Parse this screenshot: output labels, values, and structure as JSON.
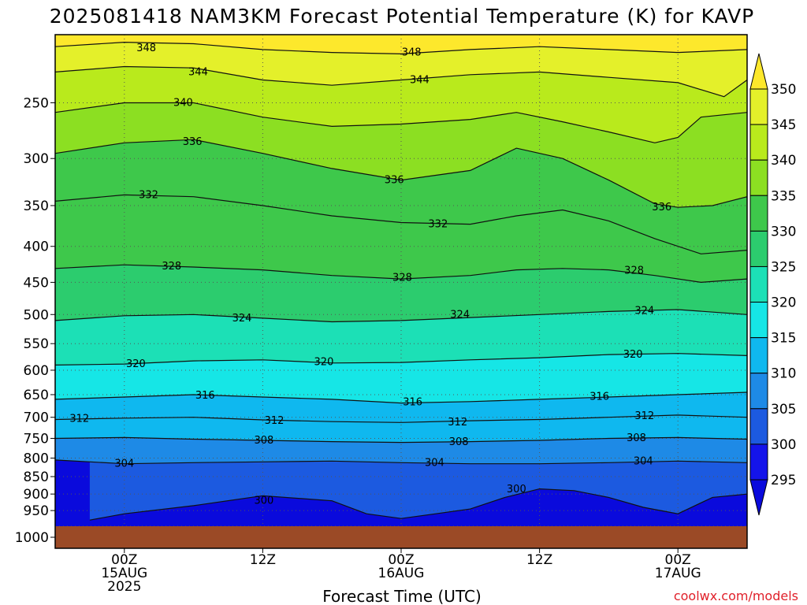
{
  "title": "2025081418 NAM3KM Forecast Potential Temperature (K) for KAVP",
  "xlabel": "Forecast Time (UTC)",
  "credit": "coolwx.com/models",
  "chart_data": {
    "type": "heatmap",
    "title": "2025081418 NAM3KM Forecast Potential Temperature (K) for KAVP",
    "xlabel": "Forecast Time (UTC)",
    "ylabel": "",
    "y_scale": "log",
    "y_reversed": true,
    "ylim": [
      1000,
      200
    ],
    "y_ticks": [
      250,
      300,
      350,
      400,
      450,
      500,
      550,
      600,
      650,
      700,
      750,
      800,
      850,
      900,
      950,
      1000
    ],
    "x_ticks": [
      {
        "hours": 6,
        "label": [
          "00Z",
          "15AUG",
          "2025"
        ]
      },
      {
        "hours": 18,
        "label": [
          "12Z"
        ]
      },
      {
        "hours": 30,
        "label": [
          "00Z",
          "16AUG"
        ]
      },
      {
        "hours": 42,
        "label": [
          "12Z"
        ]
      },
      {
        "hours": 54,
        "label": [
          "00Z",
          "17AUG"
        ]
      }
    ],
    "xlim": [
      0,
      60
    ],
    "colorbar": {
      "levels": [
        350,
        345,
        340,
        335,
        330,
        325,
        320,
        315,
        310,
        305,
        300,
        295
      ],
      "colors": [
        "#fde82c",
        "#e4f02a",
        "#b9ea1c",
        "#8cdf22",
        "#3ec84b",
        "#2ccc6e",
        "#1ce0b6",
        "#16e6e6",
        "#0fb8ef",
        "#1e8ae6",
        "#1c5ae0",
        "#1414ea",
        "#0a0adc"
      ]
    },
    "series": [
      {
        "value": 348,
        "points": [
          [
            0,
            208
          ],
          [
            6,
            205
          ],
          [
            12,
            206
          ],
          [
            18,
            210
          ],
          [
            24,
            212
          ],
          [
            30,
            213
          ],
          [
            36,
            210
          ],
          [
            42,
            208
          ],
          [
            48,
            210
          ],
          [
            54,
            212
          ],
          [
            60,
            210
          ]
        ]
      },
      {
        "value": 344,
        "points": [
          [
            0,
            226
          ],
          [
            6,
            222
          ],
          [
            12,
            223
          ],
          [
            18,
            232
          ],
          [
            24,
            236
          ],
          [
            30,
            232
          ],
          [
            36,
            228
          ],
          [
            42,
            226
          ],
          [
            48,
            230
          ],
          [
            54,
            234
          ],
          [
            58,
            245
          ],
          [
            60,
            232
          ]
        ]
      },
      {
        "value": 340,
        "points": [
          [
            0,
            258
          ],
          [
            6,
            250
          ],
          [
            12,
            250
          ],
          [
            18,
            262
          ],
          [
            24,
            270
          ],
          [
            30,
            268
          ],
          [
            36,
            264
          ],
          [
            40,
            258
          ],
          [
            44,
            266
          ],
          [
            48,
            275
          ],
          [
            52,
            285
          ],
          [
            54,
            280
          ],
          [
            56,
            262
          ],
          [
            60,
            258
          ]
        ]
      },
      {
        "value": 336,
        "points": [
          [
            0,
            295
          ],
          [
            6,
            285
          ],
          [
            12,
            282
          ],
          [
            18,
            295
          ],
          [
            24,
            310
          ],
          [
            30,
            322
          ],
          [
            36,
            312
          ],
          [
            40,
            290
          ],
          [
            44,
            300
          ],
          [
            48,
            322
          ],
          [
            52,
            348
          ],
          [
            54,
            352
          ],
          [
            57,
            350
          ],
          [
            60,
            340
          ]
        ]
      },
      {
        "value": 332,
        "points": [
          [
            0,
            345
          ],
          [
            6,
            338
          ],
          [
            12,
            340
          ],
          [
            18,
            350
          ],
          [
            24,
            362
          ],
          [
            30,
            370
          ],
          [
            36,
            372
          ],
          [
            40,
            362
          ],
          [
            44,
            355
          ],
          [
            48,
            368
          ],
          [
            52,
            390
          ],
          [
            56,
            410
          ],
          [
            60,
            405
          ]
        ]
      },
      {
        "value": 328,
        "points": [
          [
            0,
            430
          ],
          [
            6,
            425
          ],
          [
            12,
            428
          ],
          [
            18,
            432
          ],
          [
            24,
            440
          ],
          [
            30,
            445
          ],
          [
            36,
            440
          ],
          [
            40,
            432
          ],
          [
            44,
            430
          ],
          [
            48,
            432
          ],
          [
            52,
            440
          ],
          [
            56,
            450
          ],
          [
            60,
            445
          ]
        ]
      },
      {
        "value": 324,
        "points": [
          [
            0,
            510
          ],
          [
            6,
            502
          ],
          [
            12,
            500
          ],
          [
            18,
            506
          ],
          [
            24,
            512
          ],
          [
            30,
            510
          ],
          [
            36,
            505
          ],
          [
            42,
            500
          ],
          [
            48,
            495
          ],
          [
            54,
            492
          ],
          [
            60,
            500
          ]
        ]
      },
      {
        "value": 320,
        "points": [
          [
            0,
            590
          ],
          [
            6,
            588
          ],
          [
            12,
            582
          ],
          [
            18,
            580
          ],
          [
            24,
            586
          ],
          [
            30,
            585
          ],
          [
            36,
            580
          ],
          [
            42,
            576
          ],
          [
            48,
            570
          ],
          [
            54,
            568
          ],
          [
            60,
            572
          ]
        ]
      },
      {
        "value": 316,
        "points": [
          [
            0,
            660
          ],
          [
            6,
            655
          ],
          [
            12,
            650
          ],
          [
            18,
            655
          ],
          [
            24,
            660
          ],
          [
            30,
            668
          ],
          [
            36,
            665
          ],
          [
            42,
            660
          ],
          [
            48,
            655
          ],
          [
            54,
            650
          ],
          [
            60,
            645
          ]
        ]
      },
      {
        "value": 312,
        "points": [
          [
            0,
            705
          ],
          [
            6,
            702
          ],
          [
            12,
            700
          ],
          [
            18,
            706
          ],
          [
            24,
            710
          ],
          [
            30,
            712
          ],
          [
            36,
            708
          ],
          [
            42,
            705
          ],
          [
            48,
            700
          ],
          [
            54,
            695
          ],
          [
            60,
            700
          ]
        ]
      },
      {
        "value": 308,
        "points": [
          [
            0,
            750
          ],
          [
            6,
            748
          ],
          [
            12,
            752
          ],
          [
            18,
            755
          ],
          [
            24,
            758
          ],
          [
            30,
            760
          ],
          [
            36,
            758
          ],
          [
            42,
            755
          ],
          [
            48,
            750
          ],
          [
            54,
            748
          ],
          [
            60,
            752
          ]
        ]
      },
      {
        "value": 304,
        "points": [
          [
            0,
            805
          ],
          [
            6,
            815
          ],
          [
            12,
            812
          ],
          [
            18,
            810
          ],
          [
            24,
            808
          ],
          [
            30,
            812
          ],
          [
            36,
            815
          ],
          [
            42,
            815
          ],
          [
            48,
            812
          ],
          [
            54,
            808
          ],
          [
            60,
            812
          ]
        ]
      },
      {
        "value": 300,
        "points": [
          [
            3,
            980
          ],
          [
            6,
            960
          ],
          [
            12,
            935
          ],
          [
            18,
            905
          ],
          [
            24,
            920
          ],
          [
            27,
            960
          ],
          [
            30,
            975
          ],
          [
            33,
            960
          ],
          [
            36,
            945
          ],
          [
            39,
            910
          ],
          [
            42,
            885
          ],
          [
            45,
            890
          ],
          [
            48,
            910
          ],
          [
            51,
            940
          ],
          [
            54,
            960
          ],
          [
            57,
            910
          ],
          [
            60,
            900
          ]
        ]
      }
    ],
    "contour_labels": [
      {
        "text": "348",
        "x": 7.9,
        "p": 209
      },
      {
        "text": "348",
        "x": 30.9,
        "p": 212
      },
      {
        "text": "344",
        "x": 12.4,
        "p": 226
      },
      {
        "text": "344",
        "x": 31.6,
        "p": 232
      },
      {
        "text": "340",
        "x": 11.1,
        "p": 250
      },
      {
        "text": "336",
        "x": 11.9,
        "p": 284
      },
      {
        "text": "336",
        "x": 29.4,
        "p": 322
      },
      {
        "text": "336",
        "x": 52.6,
        "p": 352
      },
      {
        "text": "332",
        "x": 8.1,
        "p": 338
      },
      {
        "text": "332",
        "x": 33.2,
        "p": 372
      },
      {
        "text": "328",
        "x": 10.1,
        "p": 427
      },
      {
        "text": "328",
        "x": 30.1,
        "p": 443
      },
      {
        "text": "328",
        "x": 50.2,
        "p": 433
      },
      {
        "text": "324",
        "x": 16.2,
        "p": 506
      },
      {
        "text": "324",
        "x": 35.1,
        "p": 500
      },
      {
        "text": "324",
        "x": 51.1,
        "p": 494
      },
      {
        "text": "320",
        "x": 7.0,
        "p": 588
      },
      {
        "text": "320",
        "x": 23.3,
        "p": 584
      },
      {
        "text": "320",
        "x": 50.1,
        "p": 570
      },
      {
        "text": "316",
        "x": 13.0,
        "p": 652
      },
      {
        "text": "316",
        "x": 31.0,
        "p": 666
      },
      {
        "text": "316",
        "x": 47.2,
        "p": 654
      },
      {
        "text": "312",
        "x": 2.1,
        "p": 703
      },
      {
        "text": "312",
        "x": 19.0,
        "p": 708
      },
      {
        "text": "312",
        "x": 34.9,
        "p": 711
      },
      {
        "text": "312",
        "x": 51.1,
        "p": 697
      },
      {
        "text": "308",
        "x": 18.1,
        "p": 755
      },
      {
        "text": "308",
        "x": 35.0,
        "p": 759
      },
      {
        "text": "308",
        "x": 50.4,
        "p": 749
      },
      {
        "text": "304",
        "x": 6.0,
        "p": 815
      },
      {
        "text": "304",
        "x": 32.9,
        "p": 812
      },
      {
        "text": "304",
        "x": 51.0,
        "p": 808
      },
      {
        "text": "300",
        "x": 18.1,
        "p": 920
      },
      {
        "text": "300",
        "x": 40.0,
        "p": 886
      }
    ]
  }
}
